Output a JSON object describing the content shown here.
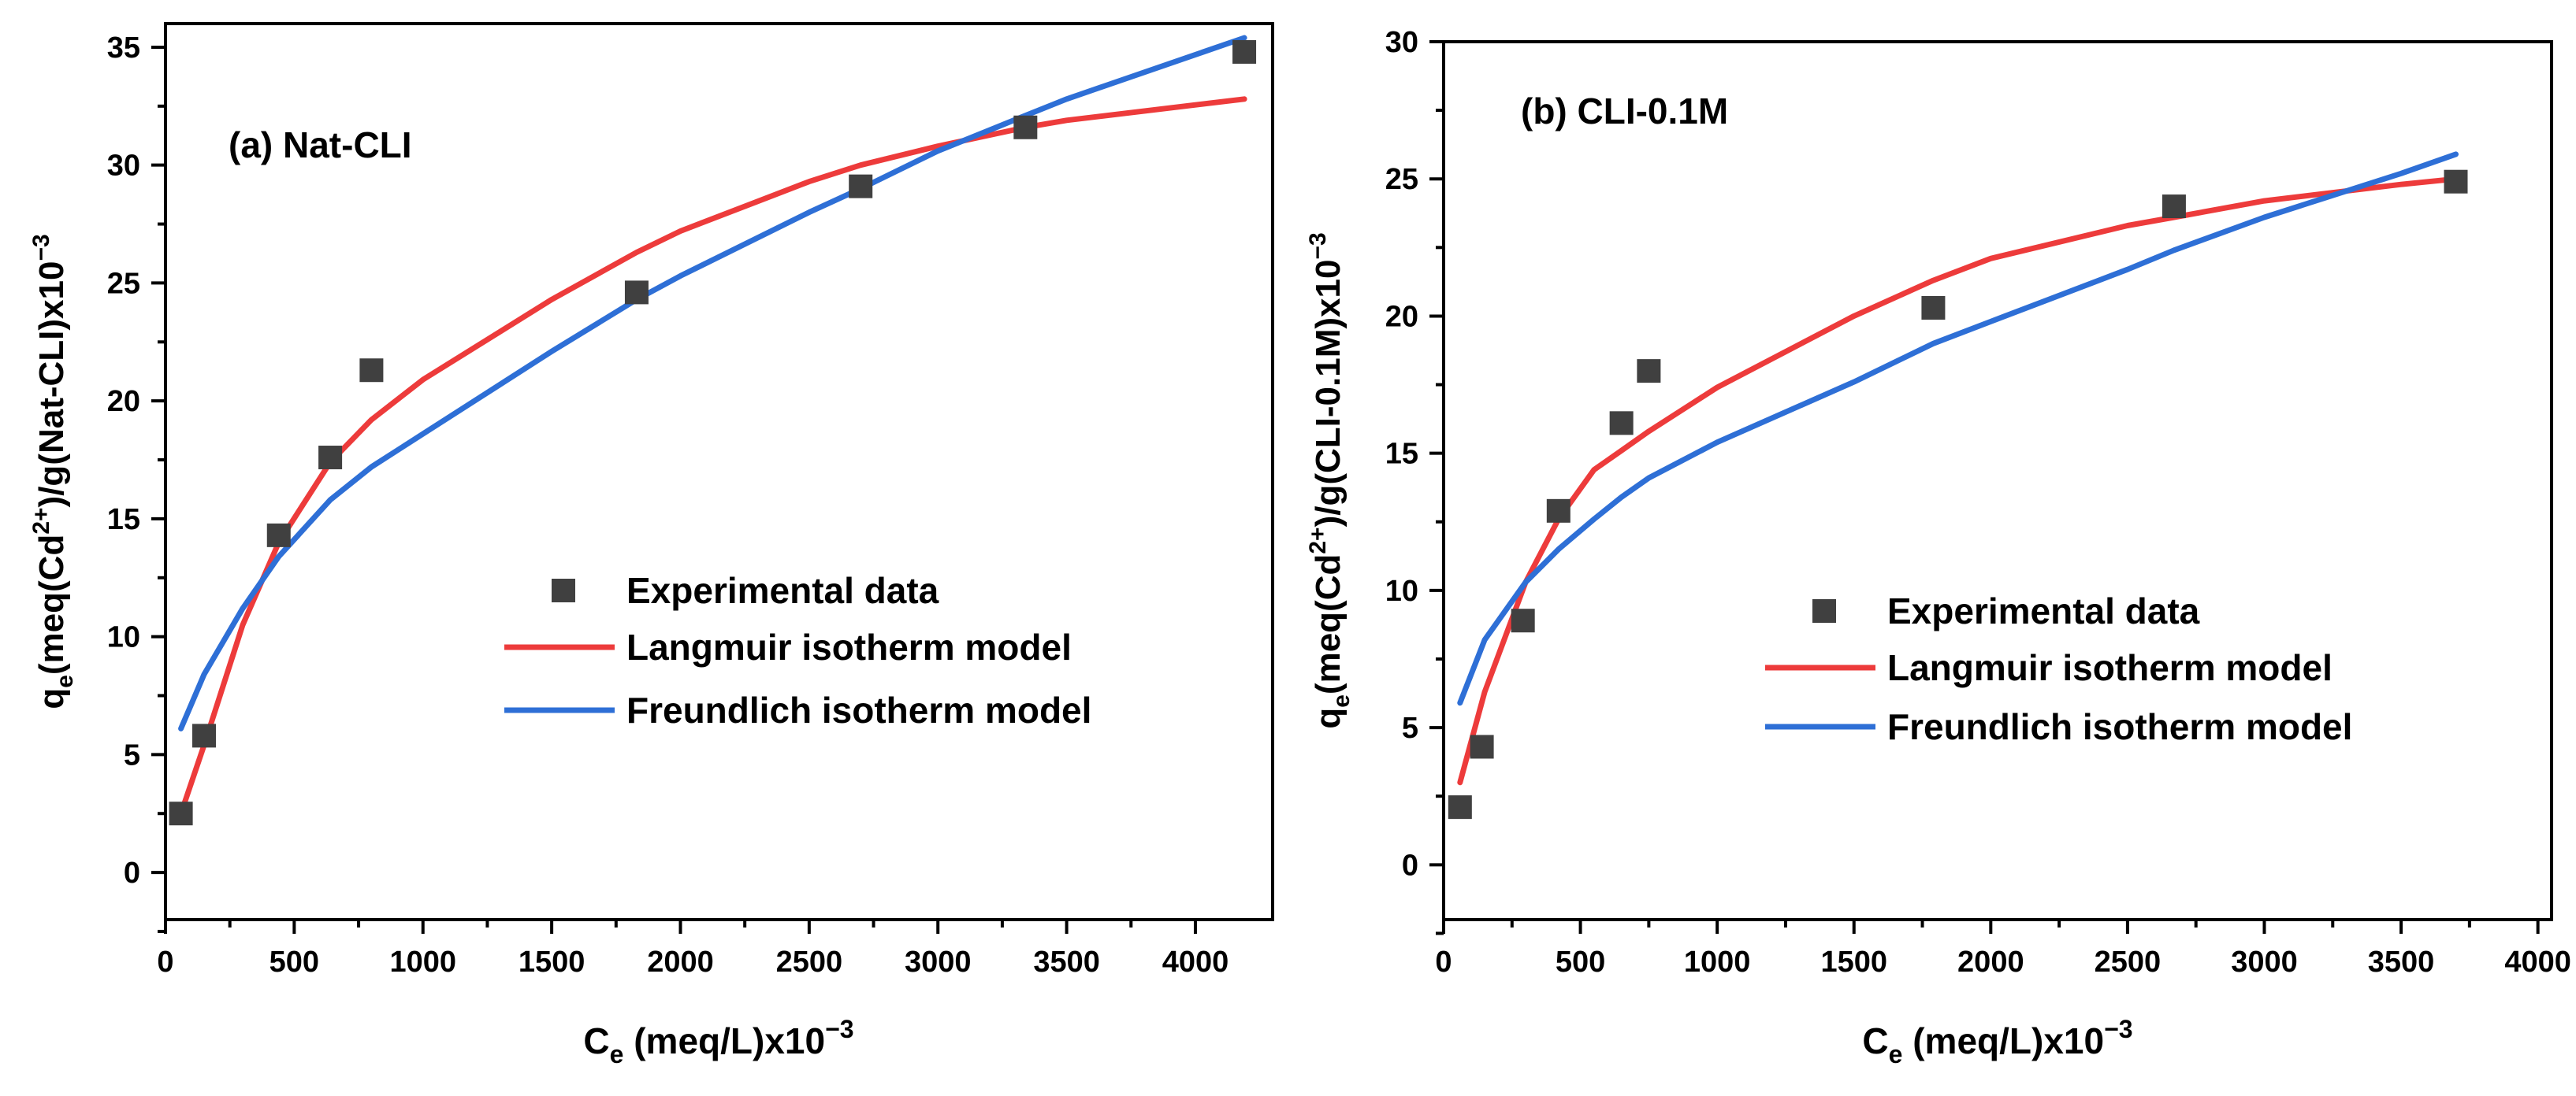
{
  "colors": {
    "experimental": "#404040",
    "langmuir": "#ed3b3b",
    "freundlich": "#2e6fd6",
    "axis": "#000000"
  },
  "chart_data": [
    {
      "type": "scatter",
      "panel_label": "(a) Nat-CLI",
      "xlabel": {
        "main": "C",
        "sub": "e",
        "rest": " (meq/L)x10",
        "sup": "−3"
      },
      "ylabel": {
        "q": "q",
        "qsub": "e",
        "a": "(meq(Cd",
        "sup": "2+",
        "b": ")/g(Nat-CLI)x10",
        "sup2": "−3"
      },
      "xlim": [
        0,
        4300
      ],
      "ylim": [
        -2,
        36
      ],
      "xticks": [
        0,
        500,
        1000,
        1500,
        2000,
        2500,
        3000,
        3500,
        4000
      ],
      "yticks": [
        0,
        5,
        10,
        15,
        20,
        25,
        30,
        35
      ],
      "grid": false,
      "legend_position": "center-right",
      "series": [
        {
          "name": "Experimental data",
          "kind": "points",
          "x": [
            60,
            150,
            440,
            640,
            800,
            1830,
            2700,
            3340,
            4190
          ],
          "y": [
            2.5,
            5.8,
            14.3,
            17.6,
            21.3,
            24.6,
            29.1,
            31.6,
            34.8
          ]
        },
        {
          "name": "Langmuir isotherm model",
          "kind": "line",
          "x": [
            60,
            150,
            300,
            440,
            640,
            800,
            1000,
            1500,
            1830,
            2000,
            2500,
            2700,
            3000,
            3340,
            3500,
            4190
          ],
          "y": [
            2.5,
            5.4,
            10.5,
            14.0,
            17.4,
            19.2,
            20.9,
            24.3,
            26.3,
            27.2,
            29.3,
            30.0,
            30.8,
            31.6,
            31.9,
            32.8
          ]
        },
        {
          "name": "Freundlich isotherm model",
          "kind": "line",
          "x": [
            60,
            150,
            300,
            440,
            640,
            800,
            1000,
            1500,
            1830,
            2000,
            2500,
            2700,
            3000,
            3340,
            3500,
            4190
          ],
          "y": [
            6.1,
            8.4,
            11.2,
            13.4,
            15.8,
            17.2,
            18.6,
            22.1,
            24.3,
            25.3,
            28.0,
            29.0,
            30.6,
            32.1,
            32.8,
            35.4
          ]
        }
      ]
    },
    {
      "type": "scatter",
      "panel_label": "(b) CLI-0.1M",
      "xlabel": {
        "main": "C",
        "sub": "e",
        "rest": " (meq/L)x10",
        "sup": "−3"
      },
      "ylabel": {
        "q": "q",
        "qsub": "e",
        "a": "(meq(Cd",
        "sup": "2+",
        "b": ")/g(CLI-0.1M)x10",
        "sup2": "−3"
      },
      "xlim": [
        0,
        4050
      ],
      "ylim": [
        -2,
        30
      ],
      "xticks": [
        0,
        500,
        1000,
        1500,
        2000,
        2500,
        3000,
        3500,
        4000
      ],
      "yticks": [
        0,
        5,
        10,
        15,
        20,
        25,
        30
      ],
      "grid": false,
      "legend_position": "center-right",
      "series": [
        {
          "name": "Experimental data",
          "kind": "points",
          "x": [
            60,
            140,
            290,
            420,
            650,
            750,
            1790,
            2670,
            3700
          ],
          "y": [
            2.1,
            4.3,
            8.9,
            12.9,
            16.1,
            18.0,
            20.3,
            24.0,
            24.9
          ]
        },
        {
          "name": "Langmuir isotherm model",
          "kind": "line",
          "x": [
            60,
            150,
            300,
            420,
            550,
            650,
            750,
            1000,
            1500,
            1790,
            2000,
            2500,
            2670,
            3000,
            3500,
            3700
          ],
          "y": [
            3.0,
            6.3,
            10.3,
            12.6,
            14.4,
            15.1,
            15.8,
            17.4,
            20.0,
            21.3,
            22.1,
            23.3,
            23.6,
            24.2,
            24.8,
            25.0
          ]
        },
        {
          "name": "Freundlich isotherm model",
          "kind": "line",
          "x": [
            60,
            150,
            300,
            420,
            550,
            650,
            750,
            1000,
            1500,
            1790,
            2000,
            2500,
            2670,
            3000,
            3500,
            3700
          ],
          "y": [
            5.9,
            8.2,
            10.3,
            11.5,
            12.6,
            13.4,
            14.1,
            15.4,
            17.6,
            19.0,
            19.8,
            21.7,
            22.4,
            23.6,
            25.2,
            25.9
          ]
        }
      ]
    }
  ]
}
